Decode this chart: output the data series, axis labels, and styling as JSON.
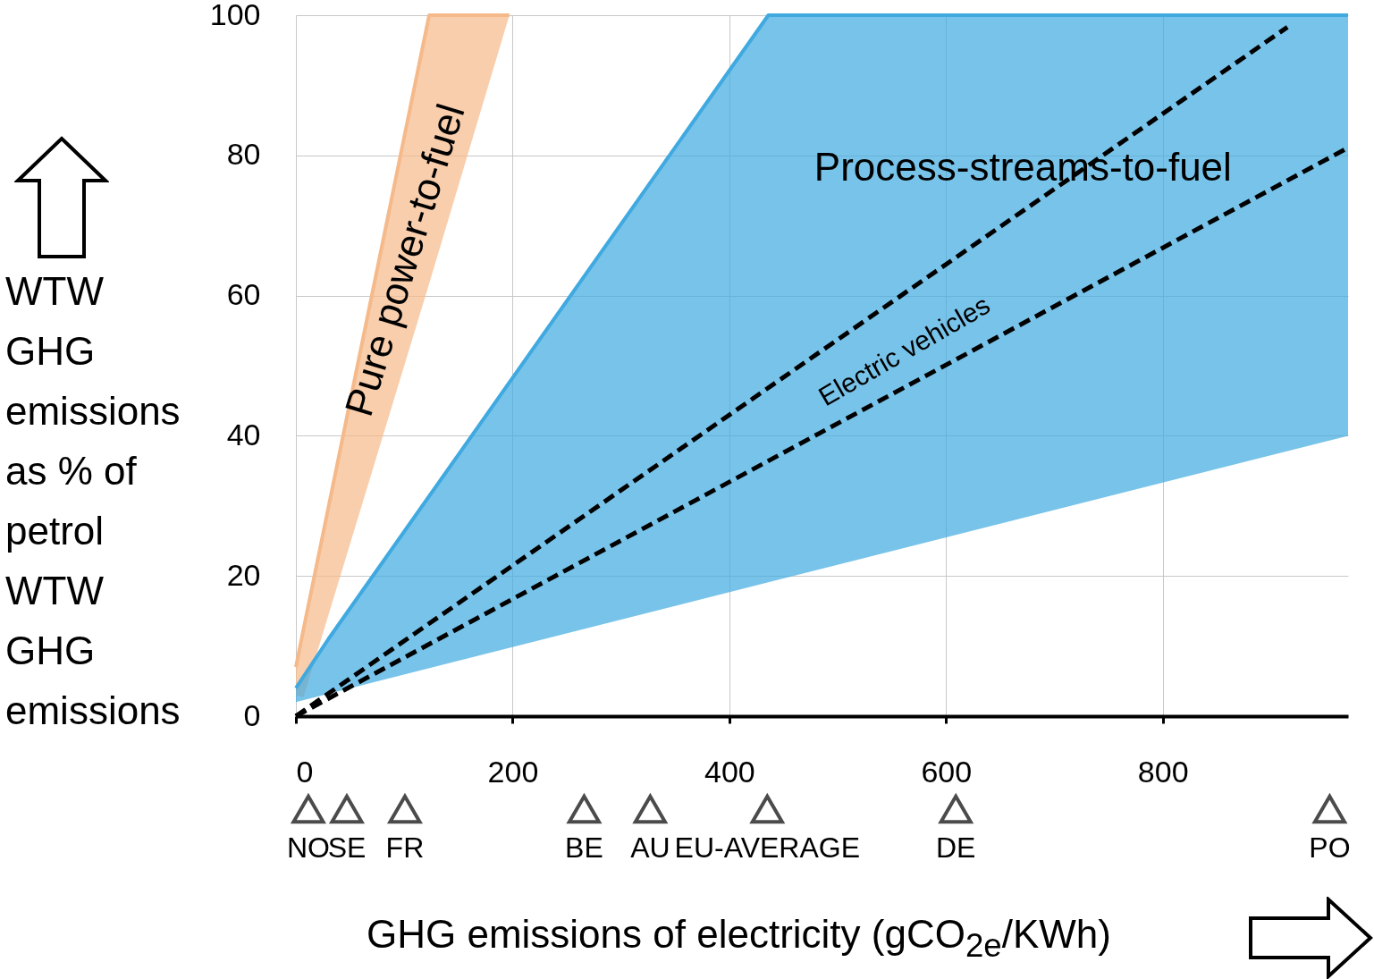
{
  "chart_data": {
    "type": "line",
    "xlabel": "GHG emissions of electricity (gCO$_{2e}$/KWh)",
    "ylabel": "WTW GHG emissions as % of petrol WTW GHG emissions",
    "xlim": [
      0,
      971
    ],
    "ylim": [
      0,
      100
    ],
    "xticks": [
      0,
      200,
      400,
      600,
      800
    ],
    "yticks": [
      0,
      20,
      40,
      60,
      80,
      100
    ],
    "grid": true,
    "line_style": "dashed",
    "series": [
      {
        "line_style": "solid",
        "color": "#f5b98a",
        "x": [
          0,
          7,
          123,
          197
        ],
        "values": [
          7,
          12.4,
          100,
          100
        ],
        "lower": [
          3,
          2.7,
          61.7,
          100
        ],
        "upper": [
          7,
          12.4,
          100,
          100
        ]
      },
      {
        "line_style": "solid",
        "color": "#3fa9e0",
        "x": [
          0,
          30,
          436,
          971
        ],
        "values": [
          4,
          11,
          100,
          100
        ],
        "lower": [
          2,
          3.2,
          19.1,
          40
        ],
        "upper": [
          4,
          11,
          100,
          100
        ]
      },
      {
        "color": "#000000",
        "x": [
          0,
          915
        ],
        "values": [
          0,
          98.3
        ]
      },
      {
        "color": "#000000",
        "x": [
          0,
          971
        ],
        "values": [
          0,
          81.1
        ]
      }
    ],
    "annotations": [
      "Pure power-to-fuel",
      "Process-streams-to-fuel",
      "Electric vehicles",
      "NO",
      "SE",
      "FR",
      "BE",
      "AU",
      "EU-AVERAGE",
      "DE",
      "PO"
    ]
  }
}
